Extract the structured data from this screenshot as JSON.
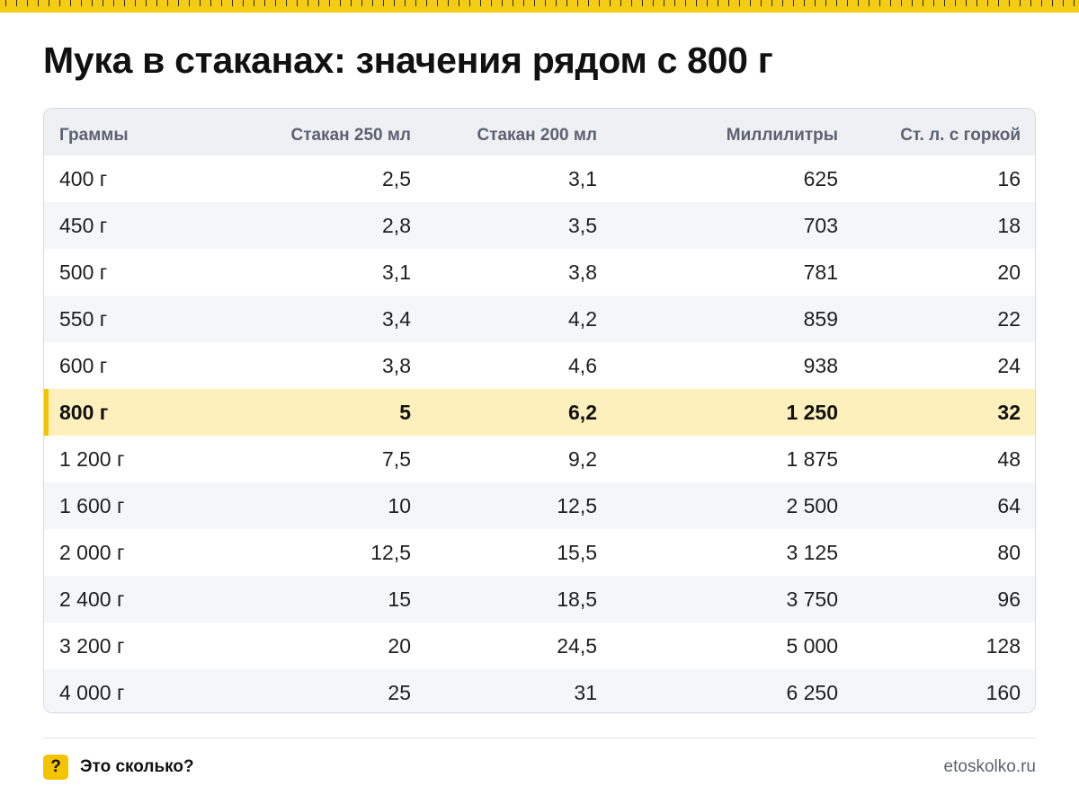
{
  "title": "Мука в стаканах: значения рядом с 800 г",
  "table": {
    "headers": [
      "Граммы",
      "Стакан 250 мл",
      "Стакан 200 мл",
      "Миллилитры",
      "Ст. л. с горкой"
    ],
    "highlight_row": 5,
    "rows": [
      [
        "400 г",
        "2,5",
        "3,1",
        "625",
        "16"
      ],
      [
        "450 г",
        "2,8",
        "3,5",
        "703",
        "18"
      ],
      [
        "500 г",
        "3,1",
        "3,8",
        "781",
        "20"
      ],
      [
        "550 г",
        "3,4",
        "4,2",
        "859",
        "22"
      ],
      [
        "600 г",
        "3,8",
        "4,6",
        "938",
        "24"
      ],
      [
        "800 г",
        "5",
        "6,2",
        "1 250",
        "32"
      ],
      [
        "1 200 г",
        "7,5",
        "9,2",
        "1 875",
        "48"
      ],
      [
        "1 600 г",
        "10",
        "12,5",
        "2 500",
        "64"
      ],
      [
        "2 000 г",
        "12,5",
        "15,5",
        "3 125",
        "80"
      ],
      [
        "2 400 г",
        "15",
        "18,5",
        "3 750",
        "96"
      ],
      [
        "3 200 г",
        "20",
        "24,5",
        "5 000",
        "128"
      ],
      [
        "4 000 г",
        "25",
        "31",
        "6 250",
        "160"
      ]
    ]
  },
  "footer": {
    "icon_glyph": "?",
    "brand": "Это сколько?",
    "site": "etoskolko.ru"
  },
  "colors": {
    "accent": "#f5c400",
    "highlight_bg": "#fdf0bd",
    "header_bg": "#eef0f4"
  }
}
